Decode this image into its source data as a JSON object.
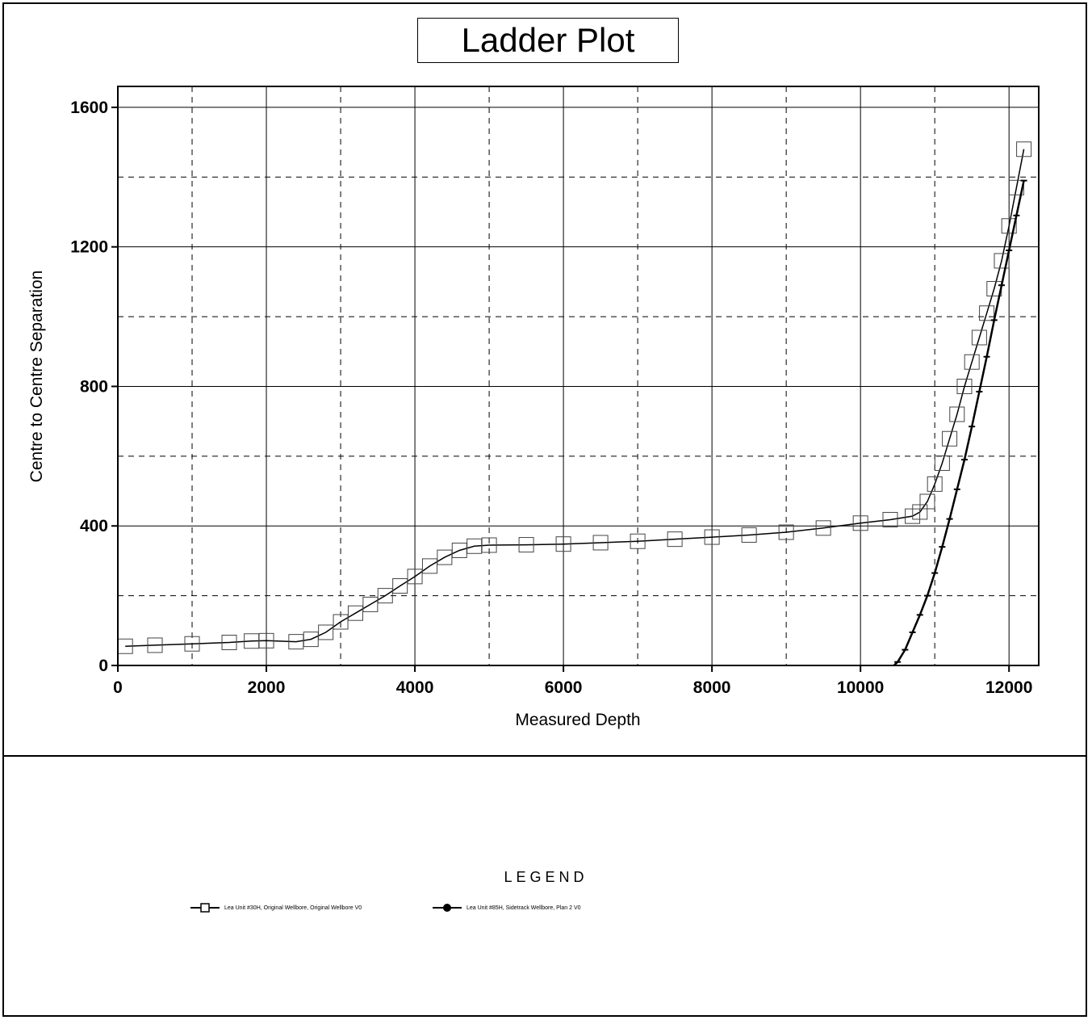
{
  "chart_data": {
    "type": "line",
    "title": "Ladder Plot",
    "xlabel": "Measured Depth",
    "ylabel": "Centre to Centre Separation",
    "xlim": [
      0,
      12400
    ],
    "ylim": [
      0,
      1660
    ],
    "x_ticks": [
      0,
      2000,
      4000,
      6000,
      8000,
      10000,
      12000
    ],
    "x_tick_labels": [
      "0",
      "2000",
      "4000",
      "6000",
      "8000",
      "10000",
      "12000"
    ],
    "y_ticks": [
      0,
      400,
      800,
      1200,
      1600
    ],
    "y_tick_labels": [
      "0",
      "400",
      "800",
      "1200",
      "1600"
    ],
    "x_minor_grid": [
      1000,
      3000,
      5000,
      7000,
      9000,
      11000
    ],
    "y_minor_grid": [
      200,
      600,
      1000,
      1400
    ],
    "grid": true,
    "legend_position": "bottom",
    "series": [
      {
        "name": "Lea Unit #30H, Original Wellbore, Original Wellbore V0",
        "marker": "square",
        "x": [
          100,
          500,
          1000,
          1500,
          1800,
          2000,
          2400,
          2600,
          2800,
          3000,
          3200,
          3400,
          3600,
          3800,
          4000,
          4200,
          4400,
          4600,
          4800,
          5000,
          5500,
          6000,
          6500,
          7000,
          7500,
          8000,
          8500,
          9000,
          9500,
          10000,
          10400,
          10700,
          10800,
          10900,
          11000,
          11100,
          11200,
          11300,
          11400,
          11500,
          11600,
          11700,
          11800,
          11900,
          12000,
          12100,
          12200
        ],
        "y": [
          55,
          58,
          62,
          66,
          70,
          71,
          68,
          75,
          95,
          125,
          150,
          175,
          200,
          228,
          255,
          285,
          310,
          330,
          342,
          345,
          346,
          348,
          352,
          356,
          362,
          368,
          374,
          382,
          394,
          408,
          418,
          428,
          440,
          470,
          520,
          580,
          650,
          720,
          800,
          870,
          940,
          1010,
          1080,
          1160,
          1260,
          1370,
          1480
        ]
      },
      {
        "name": "Lea Unit #85H, Sidetrack Wellbore, Plan 2 V0",
        "marker": "circle-tick",
        "x": [
          10450,
          10500,
          10600,
          10700,
          10800,
          10900,
          11000,
          11100,
          11200,
          11300,
          11400,
          11500,
          11600,
          11700,
          11800,
          11900,
          12000,
          12100,
          12200
        ],
        "y": [
          0,
          10,
          45,
          95,
          145,
          200,
          265,
          340,
          420,
          505,
          590,
          685,
          785,
          885,
          990,
          1090,
          1190,
          1290,
          1390
        ]
      }
    ]
  },
  "legend": {
    "title": "LEGEND",
    "items": [
      "Lea Unit #30H, Original Wellbore, Original Wellbore V0",
      "Lea Unit #85H, Sidetrack Wellbore, Plan 2 V0"
    ]
  }
}
